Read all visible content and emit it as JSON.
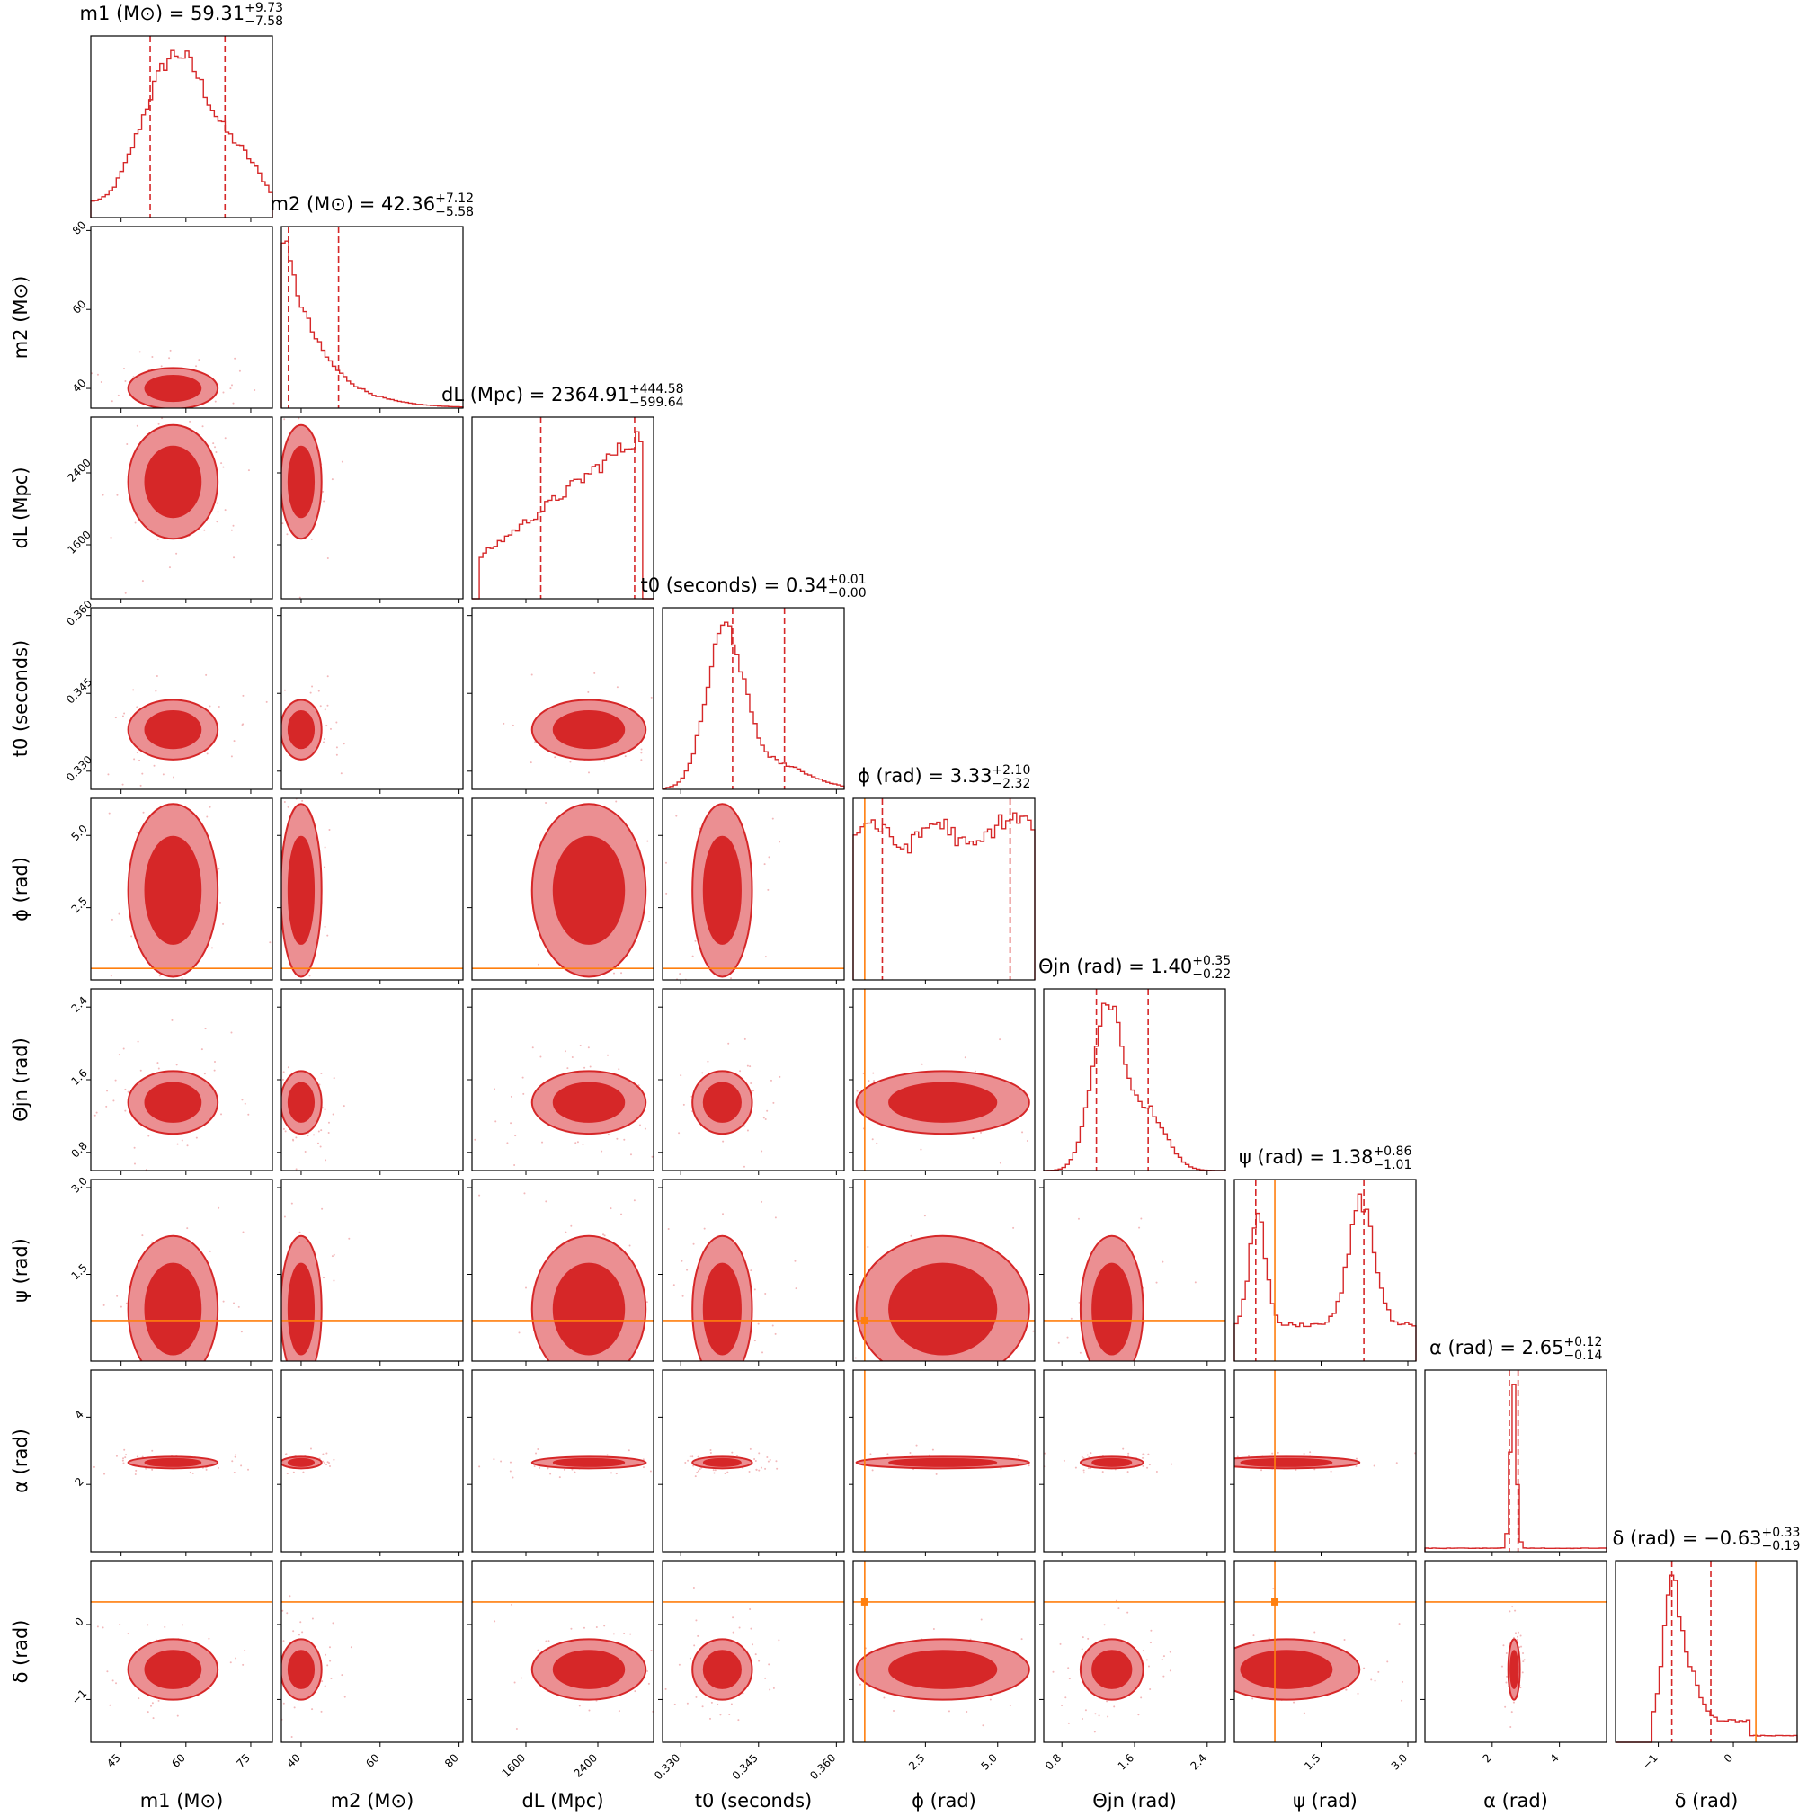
{
  "chart_data": {
    "type": "corner",
    "parameters": [
      {
        "key": "m1",
        "xlabel": "m₁ (M⊙)",
        "ylabel": "m₂ (M⊙)",
        "title_param": "m₁ (M⊙)",
        "median": "59.31",
        "plus": "+9.73",
        "minus": "−7.58",
        "range": [
          38,
          80
        ],
        "ticks": [
          45,
          60,
          75
        ],
        "tick_labels": [
          "45",
          "60",
          "75"
        ],
        "truth": null
      },
      {
        "key": "m2",
        "xlabel": "m₂ (M⊙)",
        "ylabel": "m₂ (M⊙)",
        "title_param": "m₂ (M⊙)",
        "median": "42.36",
        "plus": "+7.12",
        "minus": "−5.58",
        "range": [
          35,
          81
        ],
        "ticks": [
          40,
          60,
          80
        ],
        "tick_labels": [
          "40",
          "60",
          "80"
        ],
        "truth": null
      },
      {
        "key": "dL",
        "xlabel": "dₗ (Mpc)",
        "ylabel": "dₗ (Mpc)",
        "title_param": "dₗ (Mpc)",
        "median": "2364.91",
        "plus": "+444.58",
        "minus": "−599.64",
        "range": [
          1000,
          3020
        ],
        "ticks": [
          1600,
          2400
        ],
        "tick_labels": [
          "1600",
          "2400"
        ],
        "truth": null
      },
      {
        "key": "t0",
        "xlabel": "t₀ (seconds)",
        "ylabel": "t₀ (seconds)",
        "title_param": "t₀ (seconds)",
        "median": "0.34",
        "plus": "+0.01",
        "minus": "−0.00",
        "range": [
          0.3265,
          0.3615
        ],
        "ticks": [
          0.33,
          0.345,
          0.36
        ],
        "tick_labels": [
          "0.330",
          "0.345",
          "0.360"
        ],
        "truth": null
      },
      {
        "key": "phi",
        "xlabel": "ϕ (rad)",
        "ylabel": "ϕ (rad)",
        "title_param": "ϕ (rad)",
        "median": "3.33",
        "plus": "+2.10",
        "minus": "−2.32",
        "range": [
          0,
          6.283
        ],
        "ticks": [
          2.5,
          5.0
        ],
        "tick_labels": [
          "2.5",
          "5.0"
        ],
        "truth": 0.4
      },
      {
        "key": "theta_jn",
        "xlabel": "Θjn (rad)",
        "ylabel": "Θjn (rad)",
        "title_param": "Θjn (rad)",
        "median": "1.40",
        "plus": "+0.35",
        "minus": "−0.22",
        "range": [
          0.6,
          2.6
        ],
        "ticks": [
          0.8,
          1.6,
          2.4
        ],
        "tick_labels": [
          "0.8",
          "1.6",
          "2.4"
        ],
        "truth": null
      },
      {
        "key": "psi",
        "xlabel": "ψ (rad)",
        "ylabel": "ψ (rad)",
        "title_param": "ψ (rad)",
        "median": "1.38",
        "plus": "+0.86",
        "minus": "−1.01",
        "range": [
          0,
          3.14
        ],
        "ticks": [
          1.5,
          3.0
        ],
        "tick_labels": [
          "1.5",
          "3.0"
        ],
        "truth": 0.7
      },
      {
        "key": "alpha",
        "xlabel": "α (rad)",
        "ylabel": "α (rad)",
        "title_param": "α (rad)",
        "median": "2.65",
        "plus": "+0.12",
        "minus": "−0.14",
        "range": [
          0,
          5.4
        ],
        "ticks": [
          2,
          4
        ],
        "tick_labels": [
          "2",
          "4"
        ],
        "truth": null
      },
      {
        "key": "delta",
        "xlabel": "δ (rad)",
        "ylabel": "δ (rad)",
        "title_param": "δ (rad)",
        "median": "−0.63",
        "plus": "+0.33",
        "minus": "−0.19",
        "range": [
          -1.57,
          0.85
        ],
        "ticks": [
          -1,
          0
        ],
        "tick_labels": [
          "−1",
          "0"
        ],
        "truth": 0.3
      }
    ],
    "axis_label_names": [
      "m1 (M⊙)",
      "m2 (M⊙)",
      "dL (Mpc)",
      "t0 (seconds)",
      "ϕ (rad)",
      "Θjn (rad)",
      "ψ (rad)",
      "α (rad)",
      "δ (rad)"
    ],
    "title_texts": [
      "m1 (M⊙) = 59.31",
      "m2 (M⊙) = 42.36",
      "dL (Mpc) = 2364.91",
      "t0 (seconds) = 0.34",
      "ϕ (rad) = 3.33",
      "Θjn (rad) = 1.40",
      "ψ (rad) = 1.38",
      "α (rad) = 2.65",
      "δ (rad) = −0.63"
    ],
    "colors": {
      "posterior": "#d62728",
      "posterior_light": "#eb8f92",
      "truth": "#ff7f0e",
      "frame": "#000000"
    },
    "quantile_lines": "dashed",
    "contour_levels": 2,
    "grid": false,
    "legend": "none"
  }
}
